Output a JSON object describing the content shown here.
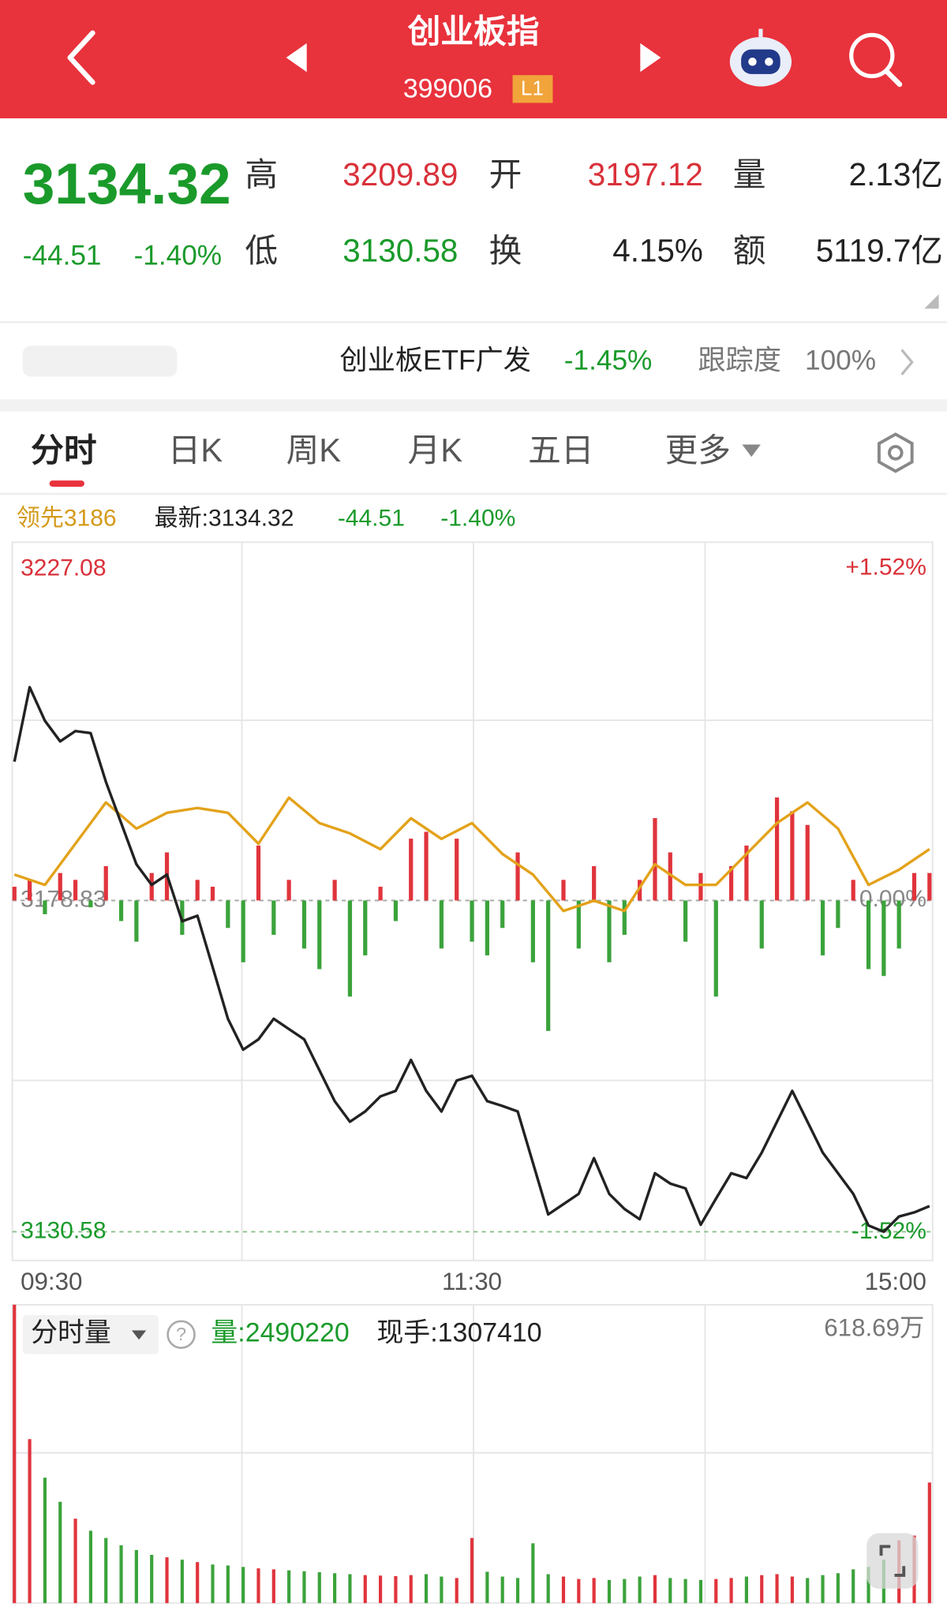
{
  "header": {
    "title": "创业板指",
    "code": "399006",
    "badge": "L1"
  },
  "quote": {
    "price": "3134.32",
    "change": "-44.51",
    "change_pct": "-1.40%",
    "stats": [
      {
        "label": "高",
        "value": "3209.89"
      },
      {
        "label": "开",
        "value": "3197.12"
      },
      {
        "label": "量",
        "value": "2.13亿"
      },
      {
        "label": "低",
        "value": "3130.58"
      },
      {
        "label": "换",
        "value": "4.15%"
      },
      {
        "label": "额",
        "value": "5119.7亿"
      }
    ]
  },
  "etf": {
    "name": "创业板ETF广发",
    "change": "-1.45%",
    "tracking_label": "跟踪度",
    "tracking": "100%"
  },
  "tabs": [
    "分时",
    "日K",
    "周K",
    "月K",
    "五日",
    "更多"
  ],
  "info": {
    "lead": "领先3186",
    "latest": "最新:3134.32",
    "change": "-44.51",
    "change_pct": "-1.40%"
  },
  "chart_data": [
    {
      "type": "line",
      "x": [
        0,
        4,
        8,
        12,
        16,
        20,
        24,
        28,
        32,
        36,
        40,
        44,
        48,
        52,
        56,
        60,
        64,
        68,
        72,
        76,
        80,
        84,
        88,
        92,
        96,
        100,
        104,
        108,
        112,
        116,
        120,
        124,
        128,
        132,
        136,
        140,
        144,
        148,
        152,
        156,
        160,
        164,
        168,
        172,
        176,
        180,
        184,
        188,
        192,
        196,
        200,
        204,
        208,
        212,
        216,
        220,
        224,
        228,
        232,
        236,
        240
      ],
      "xlim": [
        0,
        240
      ],
      "xticks": [
        {
          "value": 0,
          "label": "09:30"
        },
        {
          "value": 120,
          "label": "11:30"
        },
        {
          "value": 240,
          "label": "15:00"
        }
      ],
      "ylim": [
        3126.4,
        3231.0
      ],
      "yticks": [
        3227.08,
        3178.83,
        3130.58
      ],
      "y2lim": [
        -1.65,
        1.64
      ],
      "y2ticks": [
        {
          "value": 1.52,
          "label": "+1.52%"
        },
        {
          "value": 0,
          "label": "0.00%"
        },
        {
          "value": -1.52,
          "label": "-1.52%"
        }
      ],
      "series": [
        {
          "type": "line",
          "color": "#222222",
          "values": [
            3199.05,
            3209.89,
            3205.0,
            3202.0,
            3203.5,
            3203.2,
            3196.1,
            3190.1,
            3184.1,
            3181.1,
            3182.6,
            3175.8,
            3176.6,
            3169.1,
            3161.6,
            3157.1,
            3158.6,
            3161.6,
            3160.1,
            3158.6,
            3154.1,
            3149.6,
            3146.6,
            3148.1,
            3150.3,
            3151.1,
            3155.6,
            3151.1,
            3148.1,
            3152.6,
            3153.3,
            3149.6,
            3148.9,
            3148.1,
            3140.6,
            3133.1,
            3134.6,
            3136.1,
            3141.3,
            3136.1,
            3133.9,
            3132.4,
            3139.1,
            3137.6,
            3136.9,
            3131.6,
            3135.4,
            3139.1,
            3138.4,
            3142.1,
            3146.6,
            3151.1,
            3146.6,
            3142.1,
            3139.1,
            3136.1,
            3131.5,
            3130.58,
            3132.8,
            3133.4,
            3134.32
          ]
        },
        {
          "type": "line",
          "color": "#e3a21a",
          "x": [
            0,
            8,
            16,
            24,
            32,
            40,
            48,
            56,
            64,
            72,
            80,
            88,
            96,
            104,
            112,
            120,
            128,
            136,
            144,
            152,
            160,
            168,
            176,
            184,
            192,
            200,
            208,
            216,
            224,
            232,
            240
          ],
          "values": [
            3182.6,
            3181.1,
            3187.1,
            3193.1,
            3189.3,
            3191.6,
            3192.3,
            3191.6,
            3187.1,
            3193.8,
            3190.1,
            3188.6,
            3186.3,
            3190.8,
            3187.8,
            3190.1,
            3185.6,
            3182.6,
            3177.3,
            3178.8,
            3177.3,
            3184.1,
            3181.1,
            3181.1,
            3185.6,
            3190.1,
            3193.1,
            3189.3,
            3181.1,
            3183.3,
            3186.3
          ]
        },
        {
          "type": "bar",
          "color_up": "#e0343c",
          "color_down": "#3ba33b",
          "values": [
            2,
            3,
            -2,
            4,
            3,
            -1,
            5,
            -3,
            -6,
            4,
            7,
            -5,
            3,
            2,
            -4,
            -9,
            8,
            -5,
            3,
            -7,
            -10,
            3,
            -14,
            -8,
            2,
            -3,
            9,
            10,
            -7,
            9,
            -6,
            -8,
            -4,
            7,
            -9,
            -19,
            3,
            -7,
            5,
            -9,
            -5,
            3,
            12,
            7,
            -6,
            4,
            -14,
            5,
            8,
            -7,
            15,
            13,
            11,
            -8,
            -4,
            3,
            -10,
            -11,
            -7,
            4,
            4
          ]
        }
      ]
    },
    {
      "type": "bar",
      "title": "分时量",
      "annotations": [
        "量:2490220",
        "现手:1307410"
      ],
      "xlim": [
        0,
        240
      ],
      "ylim": [
        0,
        618.69
      ],
      "yticks": [
        {
          "value": 618.69,
          "label": "618.69万"
        }
      ],
      "color_up": "#e0343c",
      "color_down": "#3ba33b",
      "values": [
        618.69,
        340,
        260,
        210,
        175,
        150,
        135,
        120,
        110,
        100,
        95,
        90,
        85,
        80,
        78,
        75,
        72,
        70,
        68,
        66,
        64,
        62,
        60,
        58,
        57,
        56,
        58,
        60,
        55,
        52,
        135,
        65,
        55,
        52,
        124,
        60,
        55,
        50,
        52,
        48,
        50,
        55,
        58,
        52,
        50,
        48,
        50,
        52,
        55,
        58,
        60,
        55,
        52,
        58,
        62,
        70,
        75,
        90,
        130,
        140,
        250
      ]
    }
  ]
}
